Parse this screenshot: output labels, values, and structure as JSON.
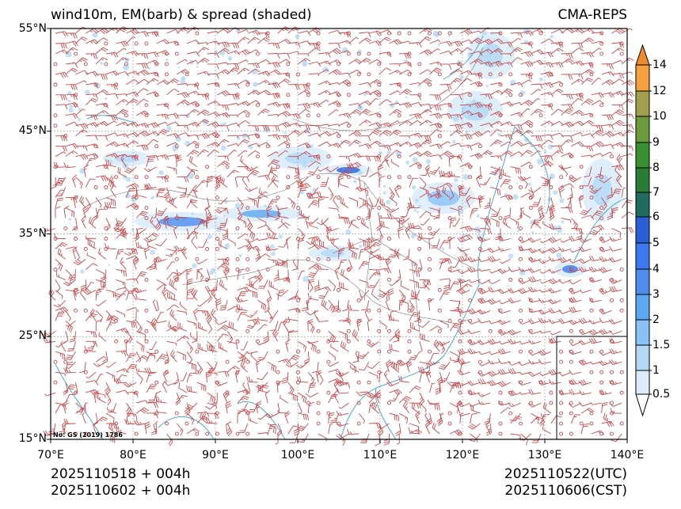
{
  "title_left": "wind10m, EM(barb) & spread (shaded)",
  "title_right": "CMA-REPS",
  "map": {
    "lon_range": [
      70,
      140
    ],
    "lat_range": [
      15,
      55
    ],
    "lat_labels": [
      "55°N",
      "45°N",
      "35°N",
      "25°N",
      "15°N"
    ],
    "lon_labels": [
      "70°E",
      "80°E",
      "90°E",
      "100°E",
      "110°E",
      "120°E",
      "130°E",
      "140°E"
    ],
    "approval_number": "No: GS (2019) 1786",
    "barb_color": "#c8484a",
    "coast_color": "#3aa0d8"
  },
  "colorbar": {
    "levels": [
      "14",
      "12",
      "10",
      "9",
      "8",
      "7",
      "6",
      "5",
      "4",
      "3",
      "2",
      "1.5",
      "1",
      "0.5"
    ],
    "colors": [
      "#f6a13f",
      "#a19f4d",
      "#6b9a3e",
      "#3b9033",
      "#2a7b35",
      "#1f6b5c",
      "#2a5fd8",
      "#3c78ef",
      "#4f8ced",
      "#5ea8f1",
      "#8ac2f6",
      "#b3d8f6",
      "#dcecfb"
    ],
    "over_color": "#f08a2a",
    "under_color": "#ffffff"
  },
  "footer": {
    "init_utc": "2025110518  +  004h",
    "init_cst": "2025110602  +  004h",
    "valid_utc": "2025110522(UTC)",
    "valid_cst": "2025110606(CST)"
  }
}
